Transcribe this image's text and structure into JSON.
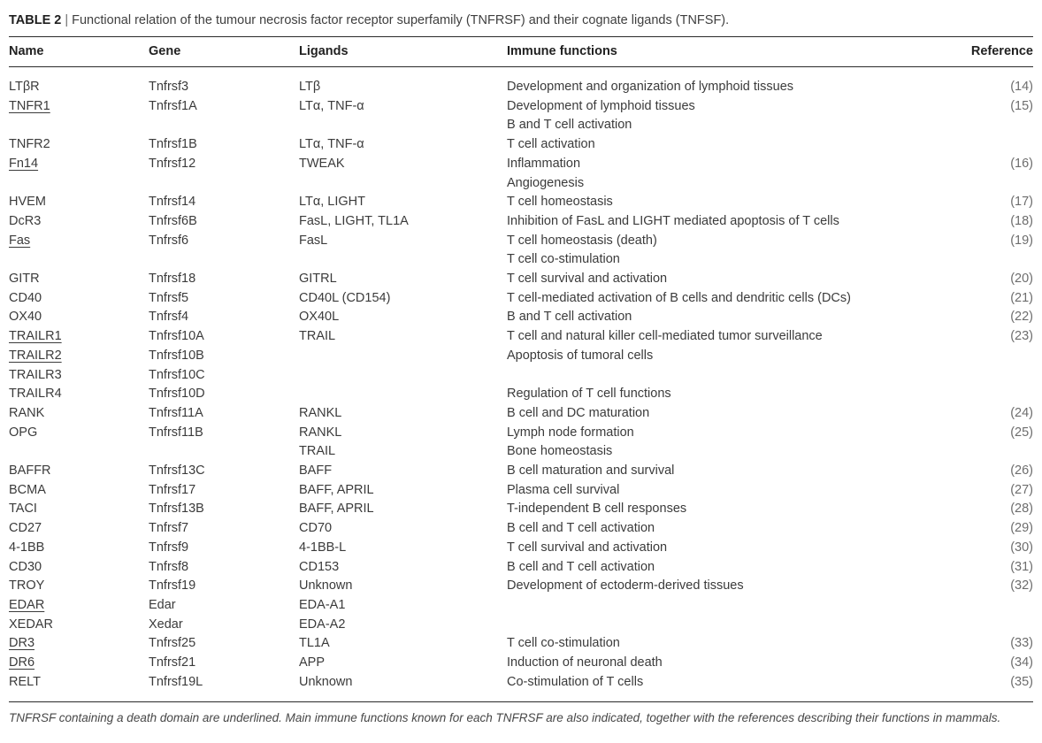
{
  "caption": {
    "label": "TABLE 2",
    "separator": "|",
    "title": "Functional relation of the tumour necrosis factor receptor superfamily (TNFRSF) and their cognate ligands (TNFSF)."
  },
  "table": {
    "columns": [
      "Name",
      "Gene",
      "Ligands",
      "Immune functions",
      "Reference"
    ],
    "rows": [
      {
        "name": "LTβR",
        "underlined": false,
        "gene": "Tnfrsf3",
        "ligands": "LTβ",
        "functions": "Development and organization of lymphoid tissues",
        "reference": "(14)"
      },
      {
        "name": "TNFR1",
        "underlined": true,
        "gene": "Tnfrsf1A",
        "ligands": "LTα, TNF-α",
        "functions": "Development of lymphoid tissues",
        "reference": "(15)"
      },
      {
        "name": "",
        "underlined": false,
        "gene": "",
        "ligands": "",
        "functions": "B and T cell activation",
        "reference": ""
      },
      {
        "name": "TNFR2",
        "underlined": false,
        "gene": "Tnfrsf1B",
        "ligands": "LTα, TNF-α",
        "functions": "T cell activation",
        "reference": ""
      },
      {
        "name": "Fn14",
        "underlined": true,
        "gene": "Tnfrsf12",
        "ligands": "TWEAK",
        "functions": "Inflammation",
        "reference": "(16)"
      },
      {
        "name": "",
        "underlined": false,
        "gene": "",
        "ligands": "",
        "functions": "Angiogenesis",
        "reference": ""
      },
      {
        "name": "HVEM",
        "underlined": false,
        "gene": "Tnfrsf14",
        "ligands": "LTα, LIGHT",
        "functions": "T cell homeostasis",
        "reference": "(17)"
      },
      {
        "name": "DcR3",
        "underlined": false,
        "gene": "Tnfrsf6B",
        "ligands": "FasL, LIGHT, TL1A",
        "functions": "Inhibition of FasL and LIGHT mediated apoptosis of T cells",
        "reference": "(18)"
      },
      {
        "name": "Fas",
        "underlined": true,
        "gene": "Tnfrsf6",
        "ligands": "FasL",
        "functions": "T cell homeostasis (death)",
        "reference": "(19)"
      },
      {
        "name": "",
        "underlined": false,
        "gene": "",
        "ligands": "",
        "functions": "T cell co-stimulation",
        "reference": ""
      },
      {
        "name": "GITR",
        "underlined": false,
        "gene": "Tnfrsf18",
        "ligands": "GITRL",
        "functions": "T cell survival and activation",
        "reference": "(20)"
      },
      {
        "name": "CD40",
        "underlined": false,
        "gene": "Tnfrsf5",
        "ligands": "CD40L (CD154)",
        "functions": "T cell-mediated activation of B cells and dendritic cells (DCs)",
        "reference": "(21)"
      },
      {
        "name": "OX40",
        "underlined": false,
        "gene": "Tnfrsf4",
        "ligands": "OX40L",
        "functions": "B and T cell activation",
        "reference": "(22)"
      },
      {
        "name": "TRAILR1",
        "underlined": true,
        "gene": "Tnfrsf10A",
        "ligands": "TRAIL",
        "functions": "T cell and natural killer cell-mediated tumor surveillance",
        "reference": "(23)"
      },
      {
        "name": "TRAILR2",
        "underlined": true,
        "gene": "Tnfrsf10B",
        "ligands": "",
        "functions": "Apoptosis of tumoral cells",
        "reference": ""
      },
      {
        "name": "TRAILR3",
        "underlined": false,
        "gene": "Tnfrsf10C",
        "ligands": "",
        "functions": "",
        "reference": ""
      },
      {
        "name": "TRAILR4",
        "underlined": false,
        "gene": "Tnfrsf10D",
        "ligands": "",
        "functions": "Regulation of T cell functions",
        "reference": ""
      },
      {
        "name": "RANK",
        "underlined": false,
        "gene": "Tnfrsf11A",
        "ligands": "RANKL",
        "functions": "B cell and DC maturation",
        "reference": "(24)"
      },
      {
        "name": "OPG",
        "underlined": false,
        "gene": "Tnfrsf11B",
        "ligands": "RANKL",
        "functions": "Lymph node formation",
        "reference": "(25)"
      },
      {
        "name": "",
        "underlined": false,
        "gene": "",
        "ligands": "TRAIL",
        "functions": "Bone homeostasis",
        "reference": ""
      },
      {
        "name": "BAFFR",
        "underlined": false,
        "gene": "Tnfrsf13C",
        "ligands": "BAFF",
        "functions": "B cell maturation and survival",
        "reference": "(26)"
      },
      {
        "name": "BCMA",
        "underlined": false,
        "gene": "Tnfrsf17",
        "ligands": "BAFF, APRIL",
        "functions": "Plasma cell survival",
        "reference": "(27)"
      },
      {
        "name": "TACI",
        "underlined": false,
        "gene": "Tnfrsf13B",
        "ligands": "BAFF, APRIL",
        "functions": "T-independent B cell responses",
        "reference": "(28)"
      },
      {
        "name": "CD27",
        "underlined": false,
        "gene": "Tnfrsf7",
        "ligands": "CD70",
        "functions": "B cell and T cell activation",
        "reference": "(29)"
      },
      {
        "name": "4-1BB",
        "underlined": false,
        "gene": "Tnfrsf9",
        "ligands": "4-1BB-L",
        "functions": "T cell survival and activation",
        "reference": "(30)"
      },
      {
        "name": "CD30",
        "underlined": false,
        "gene": "Tnfrsf8",
        "ligands": "CD153",
        "functions": "B cell and T cell activation",
        "reference": "(31)"
      },
      {
        "name": "TROY",
        "underlined": false,
        "gene": "Tnfrsf19",
        "ligands": "Unknown",
        "functions": "Development of ectoderm-derived tissues",
        "reference": "(32)"
      },
      {
        "name": "EDAR",
        "underlined": true,
        "gene": "Edar",
        "ligands": "EDA-A1",
        "functions": "",
        "reference": ""
      },
      {
        "name": "XEDAR",
        "underlined": false,
        "gene": "Xedar",
        "ligands": "EDA-A2",
        "functions": "",
        "reference": ""
      },
      {
        "name": "DR3",
        "underlined": true,
        "gene": "Tnfrsf25",
        "ligands": "TL1A",
        "functions": "T cell co-stimulation",
        "reference": "(33)"
      },
      {
        "name": "DR6",
        "underlined": true,
        "gene": "Tnfrsf21",
        "ligands": "APP",
        "functions": "Induction of neuronal death",
        "reference": "(34)"
      },
      {
        "name": "RELT",
        "underlined": false,
        "gene": "Tnfrsf19L",
        "ligands": "Unknown",
        "functions": "Co-stimulation of T cells",
        "reference": "(35)"
      }
    ]
  },
  "footnote": {
    "text": "TNFRSF containing a death domain are underlined. Main immune functions known for each TNFRSF are also indicated, together with the references describing their functions in mammals."
  },
  "colors": {
    "body_text": "#3b3b3b",
    "heading_text": "#222222",
    "reference_text": "#6d6d6d",
    "rule": "#2a2a2a",
    "background": "#ffffff"
  }
}
